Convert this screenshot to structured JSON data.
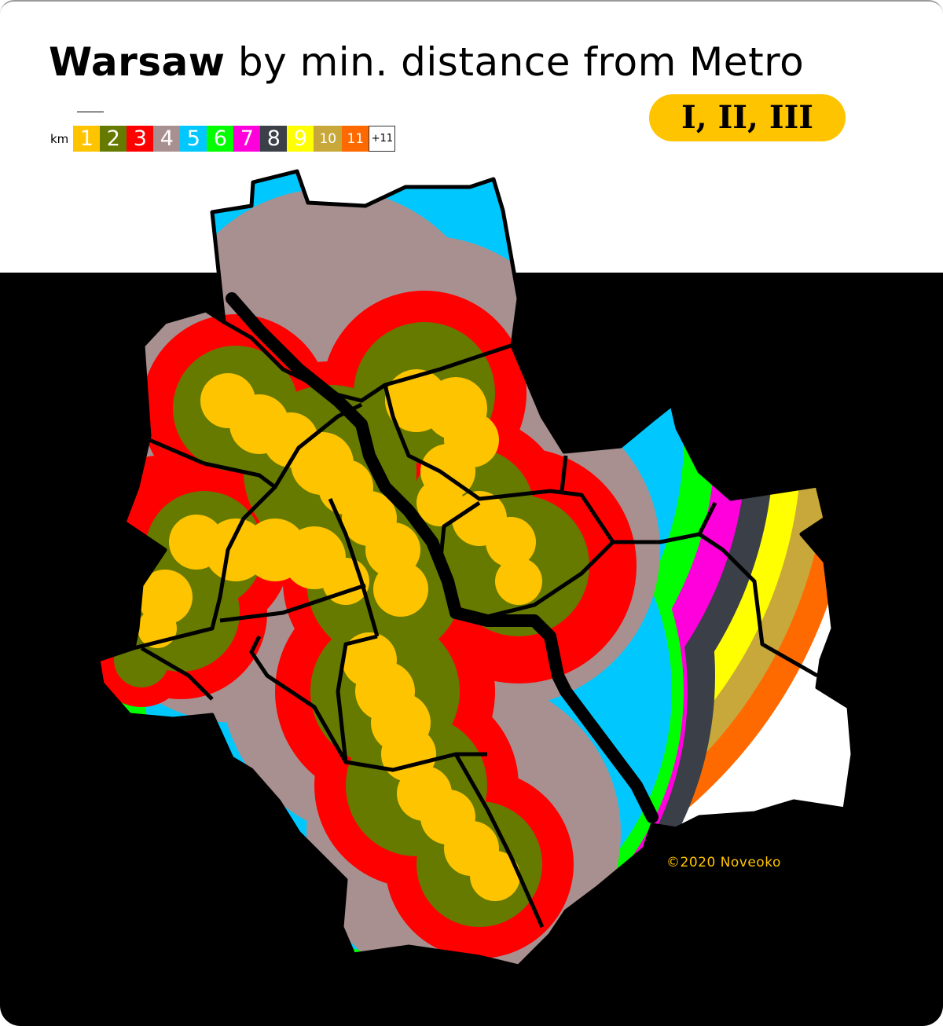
{
  "title": {
    "bold": "Warsaw",
    "rest": " by min. distance from Metro"
  },
  "lines_label": "I, II, III",
  "legend": {
    "unit": "km",
    "items": [
      {
        "label": "1",
        "color": "#ffc400",
        "text_color": "#ffffff"
      },
      {
        "label": "2",
        "color": "#667a00",
        "text_color": "#ffffff"
      },
      {
        "label": "3",
        "color": "#ff0000",
        "text_color": "#ffffff"
      },
      {
        "label": "4",
        "color": "#a89090",
        "text_color": "#ffffff"
      },
      {
        "label": "5",
        "color": "#00c8ff",
        "text_color": "#ffffff"
      },
      {
        "label": "6",
        "color": "#00ff00",
        "text_color": "#ffffff"
      },
      {
        "label": "7",
        "color": "#ff00dd",
        "text_color": "#ffffff"
      },
      {
        "label": "8",
        "color": "#3a3f48",
        "text_color": "#ffffff"
      },
      {
        "label": "9",
        "color": "#ffff00",
        "text_color": "#ffffff"
      },
      {
        "label": "10",
        "color": "#c8a83a",
        "text_color": "#ffffff"
      },
      {
        "label": "11",
        "color": "#ff6a00",
        "text_color": "#ffffff"
      },
      {
        "label": "+11",
        "color": "#ffffff",
        "text_color": "#000000"
      }
    ]
  },
  "credit": "©2020 Noveoko"
}
